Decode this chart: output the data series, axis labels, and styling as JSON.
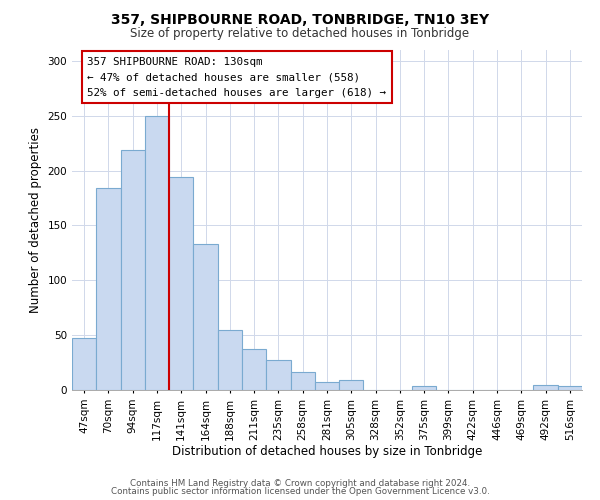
{
  "title": "357, SHIPBOURNE ROAD, TONBRIDGE, TN10 3EY",
  "subtitle": "Size of property relative to detached houses in Tonbridge",
  "xlabel": "Distribution of detached houses by size in Tonbridge",
  "ylabel": "Number of detached properties",
  "bar_labels": [
    "47sqm",
    "70sqm",
    "94sqm",
    "117sqm",
    "141sqm",
    "164sqm",
    "188sqm",
    "211sqm",
    "235sqm",
    "258sqm",
    "281sqm",
    "305sqm",
    "328sqm",
    "352sqm",
    "375sqm",
    "399sqm",
    "422sqm",
    "446sqm",
    "469sqm",
    "492sqm",
    "516sqm"
  ],
  "bar_values": [
    47,
    184,
    219,
    250,
    194,
    133,
    55,
    37,
    27,
    16,
    7,
    9,
    0,
    0,
    4,
    0,
    0,
    0,
    0,
    5,
    4
  ],
  "bar_color": "#c9d9f0",
  "bar_edge_color": "#7aaad0",
  "vline_x": 3.5,
  "vline_color": "#cc0000",
  "annotation_title": "357 SHIPBOURNE ROAD: 130sqm",
  "annotation_line1": "← 47% of detached houses are smaller (558)",
  "annotation_line2": "52% of semi-detached houses are larger (618) →",
  "ylim": [
    0,
    310
  ],
  "yticks": [
    0,
    50,
    100,
    150,
    200,
    250,
    300
  ],
  "grid_color": "#d0d8ea",
  "footer1": "Contains HM Land Registry data © Crown copyright and database right 2024.",
  "footer2": "Contains public sector information licensed under the Open Government Licence v3.0."
}
